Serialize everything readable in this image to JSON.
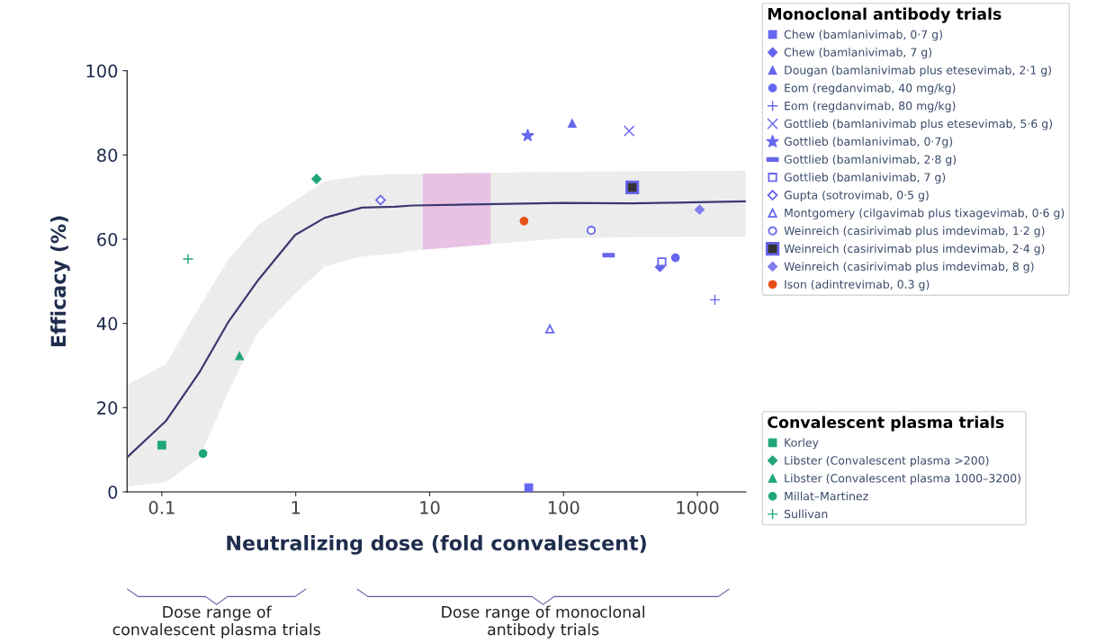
{
  "chart_data": {
    "type": "scatter",
    "xlabel": "Neutralizing dose (fold convalescent)",
    "ylabel": "Efficacy (%)",
    "log": "x",
    "xlim": [
      0.055,
      2300
    ],
    "xticks": [
      0.1,
      1,
      10,
      100,
      1000
    ],
    "ylim": [
      0,
      100
    ],
    "yticks": [
      0,
      20,
      40,
      60,
      80,
      100
    ],
    "grid": false,
    "legend": "right",
    "annotations": [
      "Monoclonal antibody trials",
      "Convalescent plasma trials",
      "Dose range of\nconvalescent plasma trials",
      "Dose range of monoclonal\nantibody trials"
    ],
    "bands": [
      {
        "axis": "x",
        "from": 8.9,
        "to": 28.5,
        "color": "#e8c1e3"
      }
    ],
    "series": [
      {
        "name": "Chew (bamlanivimab, 0·7 g)",
        "color": "#6666ee",
        "marker": "square",
        "x": [
          55
        ],
        "values": [
          1
        ]
      },
      {
        "name": "Chew (bamlanivimab, 7 g)",
        "color": "#6666ee",
        "marker": "diamond",
        "x": [
          525
        ],
        "values": [
          53.4
        ]
      },
      {
        "name": "Dougan (bamlanivimab plus etesevimab, 2·1 g)",
        "color": "#6666ee",
        "marker": "triangle",
        "x": [
          116
        ],
        "values": [
          87.5
        ]
      },
      {
        "name": "Eom (regdanvimab, 40 mg/kg)",
        "color": "#6666ee",
        "marker": "circle",
        "x": [
          685
        ],
        "values": [
          55.6
        ]
      },
      {
        "name": "Eom (regdanvimab, 80 mg/kg)",
        "color": "#6666ee",
        "marker": "cross",
        "x": [
          1350
        ],
        "values": [
          45.6
        ]
      },
      {
        "name": "Gottlieb (bamlanivimab plus etesevimab, 5·6 g)",
        "color": "#6666ee",
        "marker": "x",
        "x": [
          309
        ],
        "values": [
          85.7
        ]
      },
      {
        "name": "Gottlieb (bamlanivimab, 0·7g)",
        "color": "#6666ee",
        "marker": "star",
        "x": [
          54
        ],
        "values": [
          84.6
        ]
      },
      {
        "name": "Gottlieb (bamlanivimab, 2·8 g)",
        "color": "#6666ee",
        "x": [
          217
        ],
        "values": [
          56.2
        ]
      },
      {
        "name": "Gottlieb (bamlanivimab, 7 g)",
        "color": "#6666ee",
        "marker": "square-open",
        "x": [
          542
        ],
        "values": [
          54.6
        ]
      },
      {
        "name": "Gupta (sotrovimab, 0·5 g)",
        "color": "#6666ee",
        "marker": "diamond-open",
        "x": [
          4.3
        ],
        "values": [
          69.3
        ]
      },
      {
        "name": "Montgomery (cilgavimab plus tixagevimab, 0·6 g)",
        "color": "#6666ee",
        "marker": "triangle-open",
        "x": [
          79
        ],
        "values": [
          38.7
        ]
      },
      {
        "name": "Weinreich (casirivimab plus imdevimab, 1·2 g)",
        "color": "#6666ee",
        "marker": "circle-open",
        "x": [
          161
        ],
        "values": [
          62.1
        ]
      },
      {
        "name": "Weinreich (casirivimab plus imdevimab, 2·4 g)",
        "color": "#6666ee",
        "marker": "square-dot",
        "x": [
          326
        ],
        "values": [
          72.3
        ]
      },
      {
        "name": "Weinreich (casirivimab plus imdevimab, 8 g)",
        "color": "#7f7fee",
        "marker": "diamond",
        "x": [
          1037
        ],
        "values": [
          67.0
        ]
      },
      {
        "name": "Ison (adintrevimab, 0.3 g)",
        "color": "#e8501a",
        "marker": "circle",
        "x": [
          50.7
        ],
        "values": [
          64.3
        ]
      },
      {
        "name": "Korley",
        "color": "#1fa67a",
        "marker": "square",
        "x": [
          0.1
        ],
        "values": [
          11.1
        ]
      },
      {
        "name": "Libster (Convalescent plasma >200)",
        "color": "#1fa67a",
        "marker": "diamond",
        "x": [
          1.43
        ],
        "values": [
          74.3
        ]
      },
      {
        "name": "Libster (Convalescent plasma 1000–3200)",
        "color": "#1fa67a",
        "marker": "triangle",
        "x": [
          0.38
        ],
        "values": [
          32.3
        ]
      },
      {
        "name": "Millat–Martinez",
        "color": "#1fa67a",
        "marker": "circle",
        "x": [
          0.203
        ],
        "values": [
          9.1
        ]
      },
      {
        "name": "Sullivan",
        "color": "#1fa67a",
        "marker": "cross",
        "x": [
          0.157
        ],
        "values": [
          55.3
        ]
      },
      {
        "type": "line",
        "color": "#3b3970",
        "line_style": "solid",
        "marker": "none",
        "x": [
          0.055,
          0.107,
          0.19,
          0.316,
          0.527,
          0.99,
          1.65,
          3.12,
          5.5,
          7.5,
          98.6,
          320,
          2290
        ],
        "values": [
          8.2,
          16.8,
          28.3,
          40.5,
          50.4,
          61,
          65.1,
          67.5,
          67.7,
          68.0,
          68.6,
          68.5,
          69.0
        ],
        "lower": [
          1.3,
          2.3,
          8,
          24,
          38,
          47.1,
          53.6,
          55.9,
          56.5,
          57.3,
          60.2,
          60.5,
          60.6
        ],
        "upper": [
          25.4,
          30.3,
          43.8,
          55.3,
          63.4,
          69.2,
          73.7,
          75.1,
          75.4,
          75.5,
          76,
          76.1,
          76.2
        ]
      }
    ]
  }
}
